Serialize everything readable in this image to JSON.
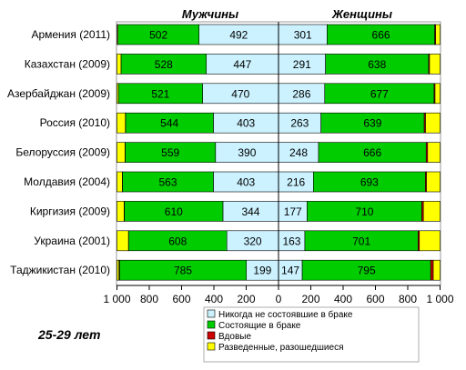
{
  "chart_data": {
    "type": "bar",
    "orientation": "horizontal",
    "stacked": true,
    "panel_titles": [
      "Мужчины",
      "Женщины"
    ],
    "subtitle": "25-29 лет",
    "categories": [
      "Армения (2011)",
      "Казахстан  (2009)",
      "Азербайджан (2009)",
      "Россия (2010)",
      "Белоруссия (2009)",
      "Молдавия  (2004)",
      "Киргизия (2009)",
      "Украина (2001)",
      "Таджикистан (2010)"
    ],
    "xlim": [
      -1000,
      1000
    ],
    "x_ticks": [
      "1 000",
      "800",
      "600",
      "400",
      "200",
      "0",
      "200",
      "400",
      "600",
      "800",
      "1 000"
    ],
    "grid": false,
    "legend_position": "bottom-right",
    "series": [
      {
        "name": "Никогда  не состоявшие в браке",
        "color": "#ccf2ff",
        "men": [
          492,
          447,
          470,
          403,
          390,
          403,
          344,
          320,
          199
        ],
        "women": [
          301,
          291,
          286,
          263,
          248,
          216,
          177,
          163,
          147
        ]
      },
      {
        "name": "Состоящие  в браке",
        "color": "#00cc00",
        "men": [
          502,
          528,
          521,
          544,
          559,
          563,
          610,
          608,
          785
        ],
        "women": [
          666,
          638,
          677,
          639,
          666,
          693,
          710,
          701,
          795
        ]
      },
      {
        "name": "Вдовые",
        "color": "#cc0000",
        "men": [
          0,
          0,
          0,
          1,
          1,
          1,
          2,
          1,
          4
        ],
        "women": [
          6,
          6,
          6,
          8,
          9,
          7,
          10,
          8,
          16
        ]
      },
      {
        "name": "Разведенные,  разошедшиеся",
        "color": "#ffff00",
        "men": [
          5,
          25,
          9,
          52,
          50,
          33,
          44,
          71,
          12
        ],
        "women": [
          27,
          65,
          31,
          90,
          77,
          84,
          103,
          128,
          42
        ]
      }
    ]
  }
}
